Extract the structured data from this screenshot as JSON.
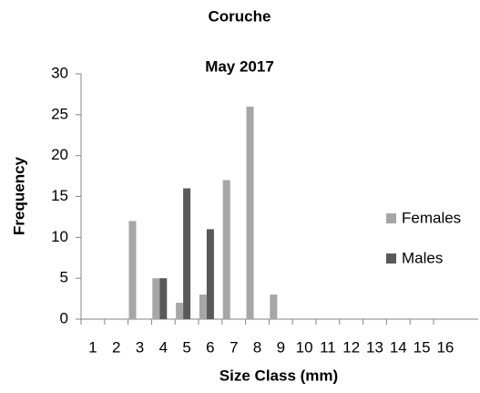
{
  "chart_data": {
    "type": "bar",
    "title": "Coruche",
    "subtitle": "May 2017",
    "x_label": "Size Class (mm)",
    "y_label": "Frequency",
    "categories": [
      "1",
      "2",
      "3",
      "4",
      "5",
      "6",
      "7",
      "8",
      "9",
      "10",
      "11",
      "12",
      "13",
      "14",
      "15",
      "16"
    ],
    "series": [
      {
        "name": "Females",
        "color": "#a6a6a6",
        "values": [
          0,
          0,
          12,
          5,
          2,
          3,
          17,
          26,
          3,
          0,
          0,
          0,
          0,
          0,
          0,
          0
        ]
      },
      {
        "name": "Males",
        "color": "#595959",
        "values": [
          0,
          0,
          0,
          5,
          16,
          11,
          0,
          0,
          0,
          0,
          0,
          0,
          0,
          0,
          0,
          0
        ]
      }
    ],
    "ylim": [
      0,
      30
    ],
    "yticks": [
      0,
      5,
      10,
      15,
      20,
      25,
      30
    ],
    "grid": false,
    "legend": "right"
  }
}
